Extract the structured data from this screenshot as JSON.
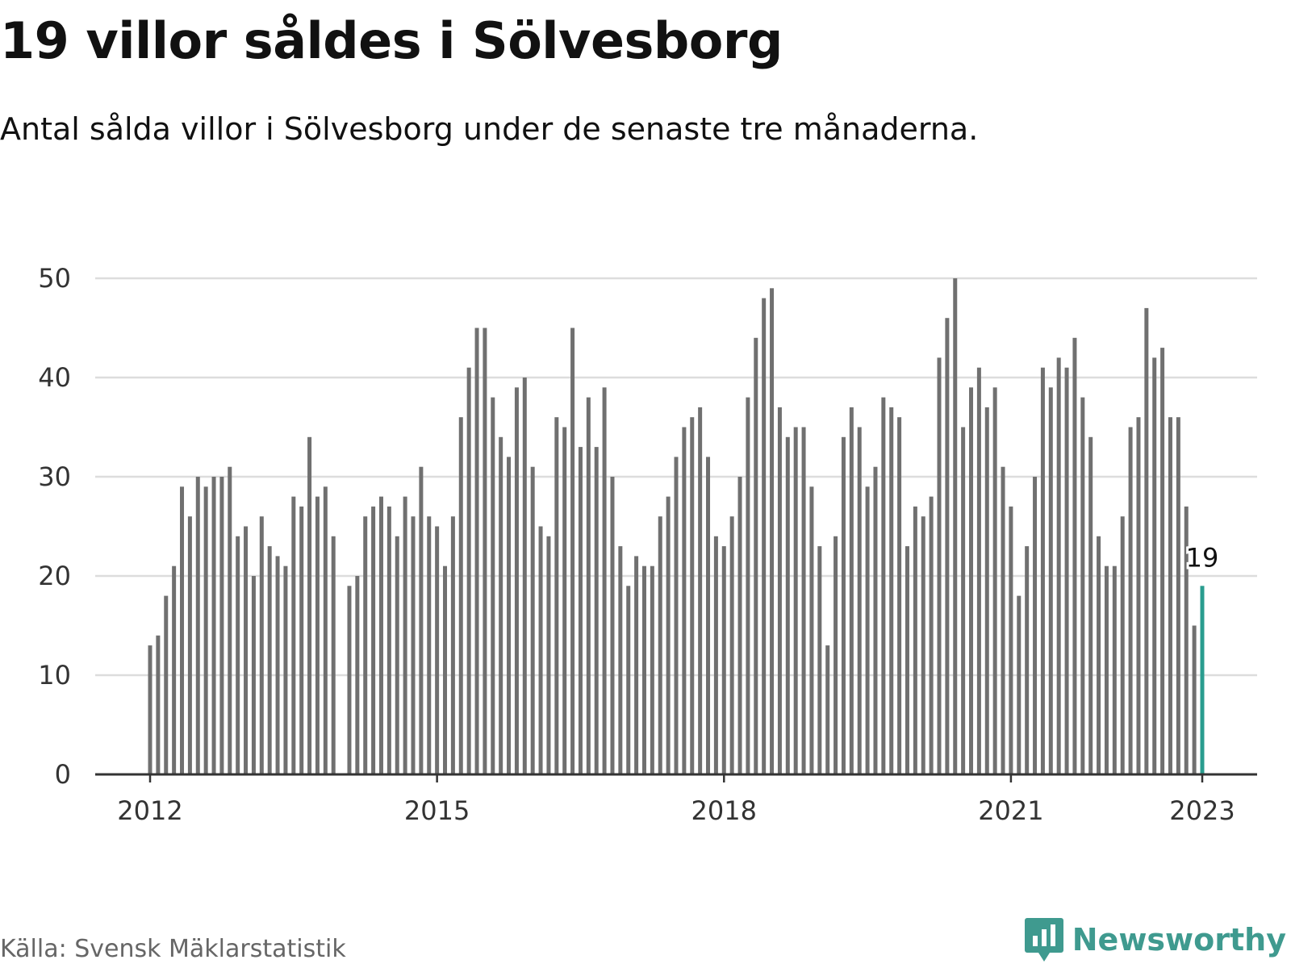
{
  "header": {
    "title": "19 villor såldes i Sölvesborg",
    "subtitle": "Antal sålda villor i Sölvesborg under de senaste tre månaderna."
  },
  "footer": {
    "source": "Källa: Svensk Mäklarstatistik",
    "brand": "Newsworthy"
  },
  "colors": {
    "bar": "#707070",
    "highlight": "#2a9d8f",
    "grid": "#dddddd",
    "axis": "#333333",
    "brand": "#3f9a8f"
  },
  "chart_data": {
    "type": "bar",
    "x_start": "2012-01",
    "interval": "month",
    "values": [
      13,
      14,
      18,
      21,
      29,
      26,
      30,
      29,
      30,
      30,
      31,
      24,
      25,
      20,
      26,
      23,
      22,
      21,
      28,
      27,
      34,
      28,
      29,
      24,
      null,
      19,
      20,
      26,
      27,
      28,
      27,
      24,
      28,
      26,
      31,
      26,
      25,
      21,
      26,
      36,
      41,
      45,
      45,
      38,
      34,
      32,
      39,
      40,
      31,
      25,
      24,
      36,
      35,
      45,
      33,
      38,
      33,
      39,
      30,
      23,
      19,
      22,
      21,
      21,
      26,
      28,
      32,
      35,
      36,
      37,
      32,
      24,
      23,
      26,
      30,
      38,
      44,
      48,
      49,
      37,
      34,
      35,
      35,
      29,
      23,
      13,
      24,
      34,
      37,
      35,
      29,
      31,
      38,
      37,
      36,
      23,
      27,
      26,
      28,
      42,
      46,
      50,
      35,
      39,
      41,
      37,
      39,
      31,
      27,
      18,
      23,
      30,
      41,
      39,
      42,
      41,
      44,
      38,
      34,
      24,
      21,
      21,
      26,
      35,
      36,
      47,
      42,
      43,
      36,
      36,
      27,
      15,
      19
    ],
    "highlight": {
      "x": "2023-01",
      "value": 19,
      "label": "19"
    },
    "x_ticks": [
      "2012",
      "2015",
      "2018",
      "2021",
      "2023"
    ],
    "y_ticks": [
      0,
      10,
      20,
      30,
      40,
      50
    ],
    "ylim": [
      0,
      50
    ],
    "grid": true
  }
}
